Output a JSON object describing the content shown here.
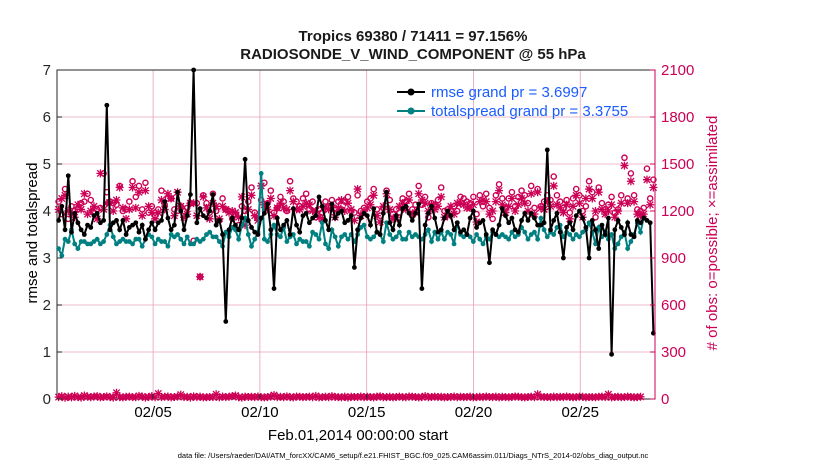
{
  "chart_data": {
    "type": "line",
    "title_line1": "Tropics 69380 / 71411 = 97.156%",
    "title_line2": "RADIOSONDE_V_WIND_COMPONENT @ 55 hPa",
    "xlabel": "Feb.01,2014 00:00:00 start",
    "ylabel_left": "rmse and totalspread",
    "ylabel_right": "# of obs: o=possible; ×=assimilated",
    "footnote": "data file: /Users/raeder/DAI/ATM_forcXX/CAM6_setup/f.e21.FHIST_BGC.f09_025.CAM6assim.011/Diags_NTrS_2014-02/obs_diag_output.nc",
    "xlim": [
      0.5,
      28.5
    ],
    "ylim_left": [
      0,
      7
    ],
    "ylim_right": [
      0,
      2100
    ],
    "x_ticks": [
      5,
      10,
      15,
      20,
      25
    ],
    "x_tick_labels": [
      "02/05",
      "02/10",
      "02/15",
      "02/20",
      "02/25"
    ],
    "y_left_ticks": [
      "0",
      "1",
      "2",
      "3",
      "4",
      "5",
      "6",
      "7"
    ],
    "y_right_ticks": [
      "0",
      "300",
      "600",
      "900",
      "1200",
      "1500",
      "1800",
      "2100"
    ],
    "legend": [
      "rmse grand pr = 3.6997",
      "totalspread grand pr = 3.3755"
    ],
    "colors": {
      "rmse": "#000000",
      "totalspread": "#008080",
      "obs": "#cc0055",
      "legend_text": "#1a5cff",
      "grid": "#e8a0b8",
      "right_axis": "#cc0055"
    },
    "series": [
      {
        "name": "rmse",
        "values": [
          3.8,
          4.1,
          3.6,
          4.75,
          3.55,
          3.95,
          3.75,
          3.6,
          3.5,
          3.7,
          3.65,
          3.9,
          3.95,
          3.75,
          3.8,
          6.25,
          3.6,
          3.75,
          3.8,
          3.6,
          3.8,
          3.5,
          3.65,
          3.7,
          3.75,
          3.55,
          3.7,
          3.4,
          3.6,
          3.75,
          3.6,
          3.75,
          3.8,
          4.2,
          3.85,
          3.6,
          3.7,
          4.4,
          4.0,
          3.6,
          3.9,
          4.35,
          7.0,
          3.75,
          4.05,
          3.9,
          3.85,
          4.0,
          4.35,
          3.7,
          3.8,
          3.5,
          1.65,
          3.6,
          3.85,
          3.7,
          3.6,
          3.85,
          5.1,
          3.8,
          3.65,
          3.55,
          3.5,
          3.85,
          3.95,
          4.15,
          3.6,
          2.35,
          3.85,
          3.6,
          3.7,
          3.8,
          3.5,
          4.05,
          3.7,
          3.55,
          3.9,
          3.95,
          3.75,
          3.85,
          3.9,
          4.3,
          4.1,
          3.8,
          3.6,
          4.15,
          3.85,
          3.95,
          4.0,
          3.75,
          3.8,
          3.9,
          2.8,
          3.6,
          3.85,
          3.95,
          3.9,
          3.7,
          4.05,
          3.55,
          3.5,
          3.95,
          4.4,
          3.75,
          3.6,
          3.9,
          3.7,
          4.05,
          4.1,
          3.95,
          3.8,
          3.95,
          4.15,
          2.35,
          3.7,
          3.95,
          4.1,
          3.85,
          3.55,
          3.6,
          3.85,
          4.0,
          3.9,
          3.6,
          3.75,
          3.55,
          3.6,
          3.5,
          3.85,
          4.0,
          3.65,
          3.75,
          3.8,
          3.5,
          2.9,
          3.6,
          3.5,
          3.7,
          4.05,
          3.9,
          3.75,
          3.85,
          3.6,
          3.55,
          3.8,
          3.95,
          3.8,
          3.95,
          3.85,
          3.7,
          3.7,
          3.75,
          5.3,
          3.6,
          3.8,
          3.95,
          3.55,
          3.0,
          3.65,
          3.75,
          3.6,
          3.9,
          4.0,
          3.85,
          3.65,
          3.0,
          3.8,
          3.6,
          3.2,
          3.7,
          3.5,
          3.85,
          0.95,
          3.6,
          3.8,
          3.65,
          3.5,
          3.75,
          3.5,
          3.45,
          3.8,
          3.75,
          3.85,
          3.8,
          3.75,
          1.4
        ]
      },
      {
        "name": "totalspread",
        "values": [
          3.2,
          3.05,
          3.4,
          3.35,
          3.6,
          3.3,
          3.2,
          3.35,
          3.35,
          3.3,
          3.3,
          3.35,
          3.4,
          3.3,
          3.35,
          3.5,
          3.7,
          3.45,
          3.3,
          3.35,
          3.4,
          3.35,
          3.35,
          3.3,
          3.4,
          3.4,
          3.25,
          3.4,
          3.5,
          3.45,
          3.3,
          3.4,
          3.35,
          3.35,
          3.25,
          3.5,
          3.45,
          3.5,
          3.4,
          3.3,
          3.45,
          3.3,
          3.3,
          3.4,
          3.35,
          3.4,
          3.5,
          3.55,
          3.45,
          3.45,
          3.35,
          3.25,
          3.55,
          3.45,
          3.65,
          3.6,
          3.4,
          3.7,
          3.85,
          3.5,
          3.25,
          3.4,
          3.55,
          4.8,
          3.4,
          3.35,
          3.5,
          3.7,
          3.5,
          3.45,
          3.65,
          3.35,
          3.45,
          3.5,
          3.3,
          3.4,
          3.35,
          3.35,
          3.25,
          3.55,
          3.5,
          3.4,
          3.75,
          3.3,
          3.2,
          3.6,
          3.45,
          3.25,
          3.45,
          3.5,
          3.4,
          3.5,
          3.35,
          3.5,
          3.65,
          3.7,
          3.45,
          3.4,
          3.45,
          3.55,
          3.5,
          3.35,
          3.75,
          3.5,
          3.4,
          3.45,
          3.55,
          3.4,
          3.4,
          3.55,
          3.45,
          3.5,
          3.45,
          3.4,
          3.5,
          3.6,
          3.35,
          3.55,
          3.4,
          3.55,
          3.4,
          3.55,
          3.5,
          3.3,
          3.75,
          3.5,
          3.45,
          3.5,
          3.45,
          3.35,
          3.5,
          3.4,
          3.3,
          3.45,
          3.4,
          3.55,
          3.5,
          3.45,
          3.5,
          3.45,
          3.4,
          3.55,
          3.45,
          3.5,
          3.65,
          3.55,
          3.4,
          3.5,
          3.55,
          3.4,
          3.85,
          3.6,
          3.45,
          3.55,
          3.5,
          3.65,
          3.7,
          3.45,
          3.55,
          3.5,
          3.4,
          3.5,
          3.45,
          3.55,
          3.6,
          3.75,
          3.55,
          3.3,
          3.65,
          3.45,
          3.55,
          3.4,
          3.5,
          3.2,
          3.3,
          3.45,
          3.55,
          3.2,
          3.35,
          3.5,
          3.75,
          3.55,
          3.85
        ]
      },
      {
        "name": "obs_possible",
        "values": [
          1260,
          1180,
          1340,
          1150,
          1230,
          1200,
          1210,
          1250,
          1260,
          1310,
          1270,
          1190,
          1210,
          1220,
          1440,
          1320,
          1260,
          1250,
          1240,
          1360,
          1200,
          1210,
          1260,
          1390,
          1290,
          1360,
          1210,
          1380,
          1190,
          1230,
          1170,
          1210,
          1330,
          1240,
          1280,
          1280,
          1210,
          1200,
          1230,
          1200,
          1220,
          1250,
          1010,
          1250,
          780,
          1300,
          1250,
          1190,
          1310,
          1200,
          1140,
          1280,
          1210,
          1200,
          1150,
          1180,
          1110,
          1230,
          1200,
          1260,
          1350,
          1190,
          1150,
          1270,
          1380,
          1250,
          1330,
          1190,
          1220,
          1290,
          1260,
          1200,
          1390,
          1280,
          1260,
          1230,
          1280,
          1310,
          1210,
          1260,
          1160,
          1210,
          1190,
          1260,
          1230,
          1270,
          1210,
          1260,
          1210,
          1260,
          1290,
          1200,
          1190,
          1300,
          1200,
          1220,
          1260,
          1280,
          1340,
          1210,
          1170,
          1220,
          1330,
          1270,
          1180,
          1210,
          1190,
          1280,
          1260,
          1310,
          1210,
          1240,
          1360,
          1240,
          1290,
          1160,
          1250,
          1240,
          1270,
          1350,
          1200,
          1210,
          1200,
          1230,
          1200,
          1290,
          1280,
          1260,
          1250,
          1290,
          1180,
          1300,
          1230,
          1310,
          1220,
          1150,
          1300,
          1370,
          1280,
          1220,
          1280,
          1320,
          1230,
          1290,
          1330,
          1300,
          1250,
          1360,
          1220,
          1340,
          1230,
          1260,
          1300,
          1270,
          1420,
          1300,
          1260,
          1220,
          1270,
          1190,
          1280,
          1340,
          1300,
          1200,
          1230,
          1390,
          1320,
          1160,
          1350,
          1250,
          1210,
          1240,
          1290,
          1190,
          1210,
          1300,
          1540,
          1280,
          1440,
          1300,
          1210,
          1200,
          1220,
          1470,
          1280,
          1400
        ]
      },
      {
        "name": "obs_assimilated",
        "values": [
          1210,
          1280,
          1300,
          1200,
          1180,
          1160,
          1240,
          1210,
          1310,
          1180,
          1200,
          1230,
          1150,
          1440,
          1210,
          1250,
          1250,
          1200,
          1270,
          1350,
          1220,
          1150,
          1210,
          1350,
          1220,
          1320,
          1170,
          1330,
          1230,
          1190,
          1150,
          1190,
          1270,
          1210,
          1310,
          1280,
          1170,
          1320,
          1230,
          1160,
          1180,
          1250,
          1250,
          1170,
          780,
          1290,
          1220,
          1150,
          1250,
          1230,
          1150,
          1230,
          1210,
          1190,
          1200,
          1190,
          1160,
          1290,
          1110,
          1210,
          1300,
          1170,
          1140,
          1360,
          1240,
          1210,
          1280,
          1170,
          1220,
          1250,
          1220,
          1210,
          1330,
          1260,
          1210,
          1210,
          1230,
          1250,
          1240,
          1200,
          1200,
          1160,
          1150,
          1220,
          1210,
          1220,
          1160,
          1220,
          1270,
          1200,
          1250,
          1210,
          1140,
          1340,
          1170,
          1200,
          1220,
          1240,
          1300,
          1170,
          1130,
          1230,
          1310,
          1210,
          1150,
          1160,
          1230,
          1250,
          1210,
          1270,
          1180,
          1190,
          1310,
          1270,
          1250,
          1200,
          1240,
          1210,
          1230,
          1290,
          1160,
          1170,
          1230,
          1180,
          1250,
          1250,
          1240,
          1220,
          1220,
          1240,
          1130,
          1260,
          1270,
          1260,
          1180,
          1200,
          1260,
          1330,
          1240,
          1190,
          1230,
          1280,
          1200,
          1240,
          1280,
          1250,
          1200,
          1310,
          1180,
          1320,
          1220,
          1210,
          1260,
          1230,
          1360,
          1240,
          1220,
          1190,
          1240,
          1150,
          1230,
          1300,
          1250,
          1160,
          1280,
          1340,
          1280,
          1200,
          1320,
          1210,
          1180,
          1200,
          1240,
          1160,
          1200,
          1250,
          1490,
          1250,
          1390,
          1260,
          1180,
          1170,
          1180,
          1400,
          1240,
          1350
        ]
      },
      {
        "name": "obs_bottom",
        "values": [
          12,
          18,
          8,
          15,
          10,
          20,
          12,
          9,
          22,
          14,
          11,
          16,
          18,
          10,
          13,
          17,
          12,
          9,
          40,
          12,
          10,
          14,
          15,
          12,
          11,
          20,
          16,
          9,
          13,
          18,
          11,
          35,
          12,
          14,
          16,
          10,
          13,
          15,
          28,
          12,
          14,
          9,
          17,
          12,
          15,
          10,
          11,
          13,
          12,
          30,
          10,
          16,
          12,
          14,
          18,
          22,
          11,
          9,
          15,
          13,
          14,
          12,
          16,
          11,
          10,
          13,
          15,
          25,
          12,
          14,
          11,
          17,
          12,
          10,
          16,
          14,
          12,
          13,
          15,
          11,
          20,
          10,
          12,
          14,
          11,
          18,
          13,
          12,
          10,
          15,
          9,
          14,
          13,
          12,
          16,
          11,
          14,
          13,
          10,
          15,
          17,
          11,
          12,
          14,
          10,
          13,
          15,
          12,
          11,
          16,
          14,
          13,
          10,
          12,
          18,
          11,
          13,
          15,
          12,
          14,
          10,
          13,
          12,
          16,
          11,
          14,
          12,
          13,
          15,
          10,
          12,
          14,
          11,
          16,
          13,
          12,
          15,
          10,
          14,
          12,
          11,
          13,
          16,
          14,
          12,
          10,
          13,
          15,
          11,
          30,
          14,
          12,
          13,
          10,
          15,
          11,
          14,
          12,
          16,
          13,
          11,
          12,
          15,
          14,
          10,
          13,
          12,
          11,
          14,
          15,
          12,
          30,
          10,
          13,
          14,
          11,
          12,
          15,
          13,
          10,
          12,
          14
        ]
      }
    ]
  }
}
